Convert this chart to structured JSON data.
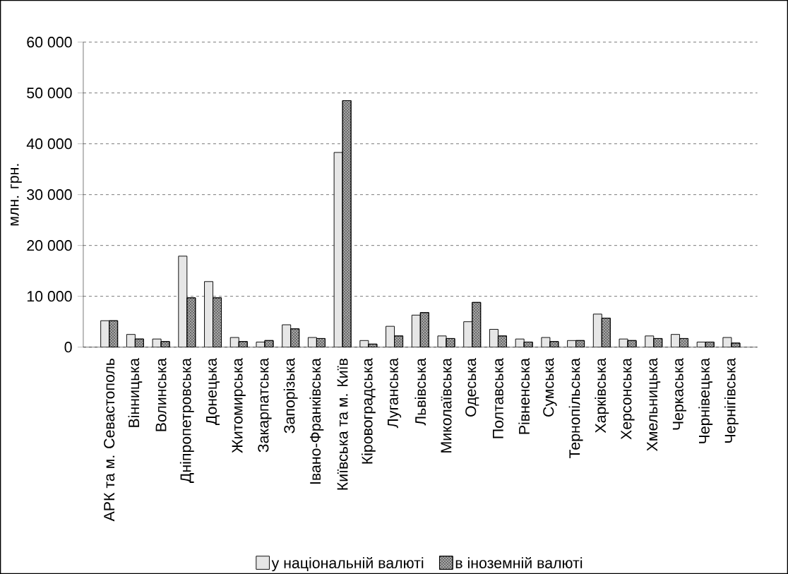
{
  "chart_data": {
    "type": "bar",
    "ylabel": "млн. грн.",
    "categories": [
      "АРК та м. Севастополь",
      "Вінницька",
      "Волинська",
      "Дніпропетровська",
      "Донецька",
      "Житомирська",
      "Закарпатська",
      "Запорізька",
      "Івано-Франківська",
      "Київська та м. Київ",
      "Кіровоградська",
      "Луганська",
      "Львівська",
      "Миколаївська",
      "Одеська",
      "Полтавська",
      "Рівненська",
      "Сумська",
      "Тернопільська",
      "Харківська",
      "Херсонська",
      "Хмельницька",
      "Черкаська",
      "Чернівецька",
      "Чернігівська"
    ],
    "series": [
      {
        "name": "у національній валюті",
        "color": "#e6e6e6",
        "values": [
          5200,
          2500,
          1600,
          17900,
          12900,
          1900,
          1000,
          4400,
          1900,
          38300,
          1300,
          4100,
          6300,
          2200,
          5000,
          3500,
          1600,
          1900,
          1300,
          6500,
          1600,
          2200,
          2500,
          1000,
          1900
        ]
      },
      {
        "name": "в іноземній валюті",
        "color": "#a6a6a6",
        "values": [
          5200,
          1600,
          1100,
          9700,
          9700,
          1100,
          1300,
          3600,
          1700,
          48500,
          600,
          2200,
          6800,
          1700,
          8800,
          2200,
          1000,
          1100,
          1300,
          5700,
          1300,
          1700,
          1700,
          1000,
          800
        ]
      }
    ],
    "ylim": [
      0,
      60000
    ],
    "yticks": [
      {
        "value": 0,
        "label": "0"
      },
      {
        "value": 10000,
        "label": "10 000"
      },
      {
        "value": 20000,
        "label": "20 000"
      },
      {
        "value": 30000,
        "label": "30 000"
      },
      {
        "value": 40000,
        "label": "40 000"
      },
      {
        "value": 50000,
        "label": "50 000"
      },
      {
        "value": 60000,
        "label": "60 000"
      }
    ],
    "grid": "y",
    "legend": "bottom"
  }
}
